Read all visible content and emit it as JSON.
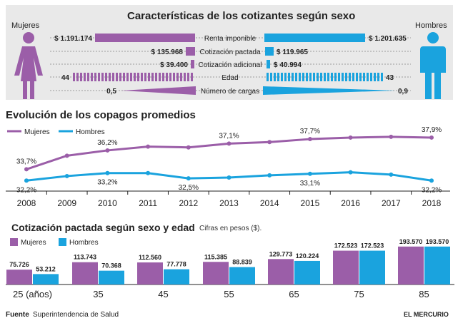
{
  "colors": {
    "mujeres": "#9b5ea8",
    "hombres": "#1aa3de",
    "panel": "#e9e9e9",
    "text": "#222222"
  },
  "icons": {
    "female": "woman-figure-icon",
    "male": "man-figure-icon"
  },
  "header": {
    "title": "Características de los cotizantes según sexo",
    "left_label": "Mujeres",
    "right_label": "Hombres"
  },
  "comparison": [
    {
      "label": "Renta imponible",
      "mujeres": "$ 1.191.174",
      "hombres": "$ 1.201.635",
      "style": "solid"
    },
    {
      "label": "Cotización pactada",
      "mujeres": "$ 135.968",
      "hombres": "$ 119.965",
      "style": "solid"
    },
    {
      "label": "Cotización adicional",
      "mujeres": "$ 39.400",
      "hombres": "$ 40.994",
      "style": "solid"
    },
    {
      "label": "Edad",
      "mujeres": "44",
      "hombres": "43",
      "style": "striped"
    },
    {
      "label": "Número de cargas",
      "mujeres": "0,5",
      "hombres": "0,9",
      "style": "wedge"
    }
  ],
  "chart_data": [
    {
      "type": "line",
      "title": "Evolución de los copagos promedios",
      "x": [
        "2008",
        "2009",
        "2010",
        "2011",
        "2012",
        "2013",
        "2014",
        "2015",
        "2016",
        "2017",
        "2018"
      ],
      "series": [
        {
          "name": "Mujeres",
          "color": "#9b5ea8",
          "values": [
            33.7,
            35.5,
            36.2,
            36.7,
            36.6,
            37.1,
            37.3,
            37.7,
            37.9,
            38.0,
            37.9
          ]
        },
        {
          "name": "Hombres",
          "color": "#1aa3de",
          "values": [
            32.2,
            32.8,
            33.2,
            33.2,
            32.5,
            32.6,
            32.9,
            33.1,
            33.3,
            33.0,
            32.2
          ]
        }
      ],
      "data_labels": [
        {
          "series": 0,
          "index": 0,
          "text": "33,7%"
        },
        {
          "series": 0,
          "index": 2,
          "text": "36,2%"
        },
        {
          "series": 0,
          "index": 5,
          "text": "37,1%"
        },
        {
          "series": 0,
          "index": 7,
          "text": "37,7%"
        },
        {
          "series": 0,
          "index": 10,
          "text": "37,9%"
        },
        {
          "series": 1,
          "index": 0,
          "text": "32,2%"
        },
        {
          "series": 1,
          "index": 2,
          "text": "33,2%"
        },
        {
          "series": 1,
          "index": 4,
          "text": "32,5%"
        },
        {
          "series": 1,
          "index": 7,
          "text": "33,1%"
        },
        {
          "series": 1,
          "index": 10,
          "text": "32,2%"
        }
      ],
      "ylim": [
        31,
        39.5
      ],
      "legend": "top-left",
      "grid": false
    },
    {
      "type": "bar",
      "title": "Cotización pactada según sexo y edad",
      "subtitle": "Cifras en pesos ($).",
      "categories": [
        "25 (años)",
        "35",
        "45",
        "55",
        "65",
        "75",
        "85"
      ],
      "series": [
        {
          "name": "Mujeres",
          "color": "#9b5ea8",
          "values": [
            75726,
            113743,
            112560,
            115385,
            129773,
            172523,
            193570
          ]
        },
        {
          "name": "Hombres",
          "color": "#1aa3de",
          "values": [
            53212,
            70368,
            77778,
            88839,
            120224,
            172523,
            193570
          ]
        }
      ],
      "value_labels": [
        [
          "75.726",
          "113.743",
          "112.560",
          "115.385",
          "129.773",
          "172.523",
          "193.570"
        ],
        [
          "53.212",
          "70.368",
          "77.778",
          "88.839",
          "120.224",
          "172.523",
          "193.570"
        ]
      ],
      "ylim": [
        0,
        200000
      ],
      "legend": "top-left",
      "grid": false
    }
  ],
  "footer": {
    "source_label": "Fuente",
    "source_text": "Superintendencia de Salud",
    "credit": "EL MERCURIO"
  }
}
